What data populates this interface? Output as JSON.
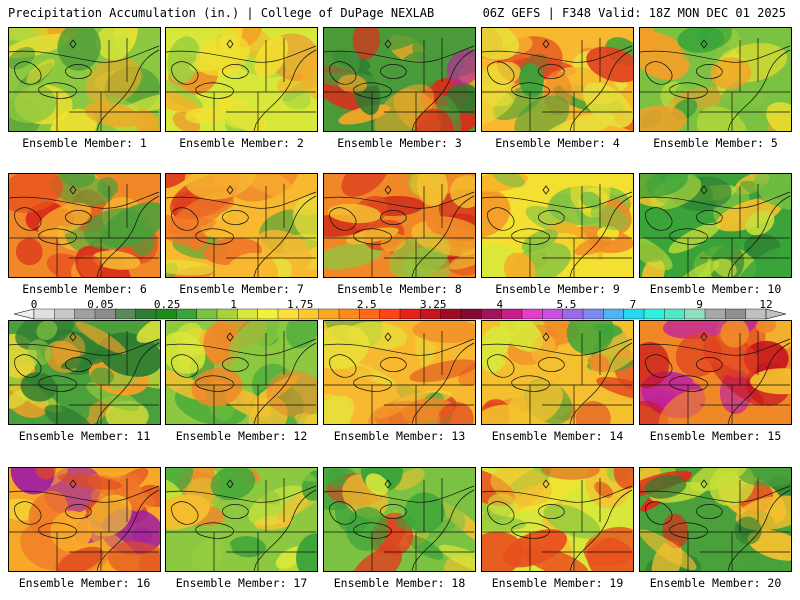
{
  "header": {
    "title_left": "Precipitation Accumulation (in.) | College of DuPage NEXLAB",
    "title_right": "06Z GEFS | F348 Valid: 18Z MON DEC 01 2025"
  },
  "colorbar": {
    "tick_labels": [
      "0",
      "0.05",
      "0.25",
      "1",
      "1.75",
      "2.5",
      "3.25",
      "4",
      "5.5",
      "7",
      "9",
      "12"
    ],
    "colors": [
      "#e0e0e0",
      "#c8c8c8",
      "#a0a0a0",
      "#8c8c8c",
      "#5a8a5a",
      "#2e7d32",
      "#1b8a1b",
      "#3aa33a",
      "#7cc242",
      "#a8d43a",
      "#d8e83a",
      "#f2f23a",
      "#ffe03a",
      "#ffc830",
      "#ffa824",
      "#ff8a1e",
      "#ff6a1a",
      "#ff4418",
      "#e82018",
      "#c8141e",
      "#a00c28",
      "#800a30",
      "#a0145a",
      "#c81e8c",
      "#e63cc8",
      "#c850e0",
      "#9a6ae8",
      "#7a8af0",
      "#50b4f0",
      "#28d8f0",
      "#30f0e0",
      "#50e8c8",
      "#8ce0c0",
      "#a8a8a8",
      "#909090",
      "#c0c0c0"
    ]
  },
  "panels": [
    {
      "label": "Ensemble Member: 1",
      "palette": [
        "#4a9a3a",
        "#8cc840",
        "#d4e43a",
        "#f2e030",
        "#f0a828"
      ]
    },
    {
      "label": "Ensemble Member: 2",
      "palette": [
        "#9ed040",
        "#d8e83a",
        "#f4e030",
        "#f8b028",
        "#f08828"
      ]
    },
    {
      "label": "Ensemble Member: 3",
      "palette": [
        "#2e7d32",
        "#4a9a3a",
        "#f2a828",
        "#e02a1a",
        "#c020a0"
      ]
    },
    {
      "label": "Ensemble Member: 4",
      "palette": [
        "#e8e03a",
        "#f8b830",
        "#f08828",
        "#e04020",
        "#3aa33a"
      ]
    },
    {
      "label": "Ensemble Member: 5",
      "palette": [
        "#3aa33a",
        "#7cc242",
        "#c8e03a",
        "#e8e030",
        "#f4a028"
      ]
    },
    {
      "label": "Ensemble Member: 6",
      "palette": [
        "#f8b830",
        "#f08828",
        "#e8501e",
        "#d82a1a",
        "#4aa03a"
      ]
    },
    {
      "label": "Ensemble Member: 7",
      "palette": [
        "#e8e03a",
        "#f8b830",
        "#f07828",
        "#3aa33a",
        "#d82a1a"
      ]
    },
    {
      "label": "Ensemble Member: 8",
      "palette": [
        "#f4c030",
        "#f08828",
        "#e04a20",
        "#d02a1a",
        "#8cc840"
      ]
    },
    {
      "label": "Ensemble Member: 9",
      "palette": [
        "#d8e83a",
        "#f4e030",
        "#f8b028",
        "#f08828",
        "#7cc242"
      ]
    },
    {
      "label": "Ensemble Member: 10",
      "palette": [
        "#2e7d32",
        "#3aa33a",
        "#7cc242",
        "#c8e03a",
        "#f4c030"
      ]
    },
    {
      "label": "Ensemble Member: 11",
      "palette": [
        "#2e7d32",
        "#4aa03a",
        "#8cc840",
        "#e0e03a",
        "#f4a028"
      ]
    },
    {
      "label": "Ensemble Member: 12",
      "palette": [
        "#3aa33a",
        "#8cc840",
        "#d8e83a",
        "#f4c030",
        "#f08828"
      ]
    },
    {
      "label": "Ensemble Member: 13",
      "palette": [
        "#e8e03a",
        "#f8b830",
        "#f08828",
        "#e04a20",
        "#5ab03a"
      ]
    },
    {
      "label": "Ensemble Member: 14",
      "palette": [
        "#d8e83a",
        "#f4c030",
        "#f08828",
        "#e04020",
        "#3aa33a"
      ]
    },
    {
      "label": "Ensemble Member: 15",
      "palette": [
        "#f4c030",
        "#f08828",
        "#e04020",
        "#c8141e",
        "#c020a0"
      ]
    },
    {
      "label": "Ensemble Member: 16",
      "palette": [
        "#f4d030",
        "#f8a828",
        "#f07828",
        "#e04a20",
        "#a020a0"
      ]
    },
    {
      "label": "Ensemble Member: 17",
      "palette": [
        "#3aa33a",
        "#8cc840",
        "#d8e83a",
        "#f4c030",
        "#f08828"
      ]
    },
    {
      "label": "Ensemble Member: 18",
      "palette": [
        "#3aa33a",
        "#7cc242",
        "#d8e83a",
        "#f4c030",
        "#e04020"
      ]
    },
    {
      "label": "Ensemble Member: 19",
      "palette": [
        "#8cc840",
        "#d8e83a",
        "#f4e030",
        "#f4c030",
        "#e8501e"
      ]
    },
    {
      "label": "Ensemble Member: 20",
      "palette": [
        "#2e7d32",
        "#4aa03a",
        "#c8e03a",
        "#f4c030",
        "#e02a1a"
      ]
    }
  ]
}
